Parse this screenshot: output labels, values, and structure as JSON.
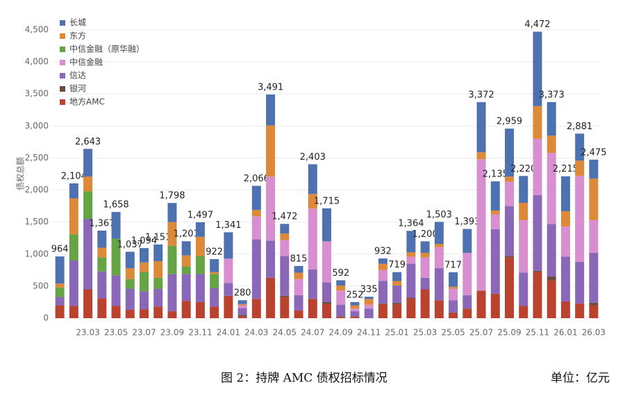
{
  "chart_data": {
    "type": "stacked-bar",
    "y_label": "债权总额",
    "caption": "图 2：持牌 AMC 债权招标情况",
    "unit": "单位：亿元",
    "categories": [
      null,
      null,
      "23.03",
      null,
      "23.05",
      null,
      "23.07",
      null,
      "23.09",
      null,
      "23.11",
      null,
      "24.01",
      null,
      "24.03",
      null,
      "24.05",
      null,
      "24.07",
      null,
      "24.09",
      null,
      "24.11",
      null,
      "25.01",
      null,
      "25.03",
      null,
      "25.05",
      null,
      "25.07",
      null,
      "25.09",
      null,
      "25.11",
      null,
      "26.01",
      null,
      "26.03"
    ],
    "series": [
      {
        "name": "长城",
        "color": "#4e72b0",
        "values": [
          424,
          234,
          433,
          267,
          418,
          257,
          224,
          261,
          298,
          221,
          227,
          202,
          411,
          60,
          376,
          481,
          152,
          105,
          463,
          515,
          82,
          52,
          35,
          82,
          139,
          333,
          180,
          343,
          227,
          373,
          782,
          455,
          749,
          420,
          1162,
          523,
          545,
          421,
          295
        ]
      },
      {
        "name": "东方",
        "color": "#dc8a3a",
        "values": [
          60,
          560,
          230,
          150,
          0,
          170,
          150,
          260,
          370,
          170,
          300,
          30,
          0,
          20,
          100,
          800,
          100,
          100,
          230,
          0,
          80,
          50,
          90,
          100,
          70,
          70,
          70,
          50,
          30,
          0,
          110,
          60,
          80,
          270,
          510,
          270,
          240,
          240,
          650
        ]
      },
      {
        "name": "中信金融（原华融）",
        "color": "#64a445",
        "values": [
          150,
          410,
          430,
          220,
          570,
          150,
          300,
          170,
          440,
          120,
          280,
          220,
          0,
          0,
          0,
          0,
          0,
          0,
          0,
          0,
          0,
          0,
          0,
          0,
          0,
          0,
          0,
          0,
          0,
          0,
          0,
          0,
          0,
          0,
          0,
          0,
          0,
          0,
          0
        ]
      },
      {
        "name": "中信金融",
        "color": "#d88fd0",
        "values": [
          0,
          0,
          0,
          0,
          0,
          0,
          0,
          0,
          0,
          0,
          0,
          0,
          380,
          40,
          360,
          1000,
          250,
          250,
          950,
          640,
          220,
          40,
          60,
          170,
          0,
          110,
          320,
          330,
          180,
          660,
          2050,
          230,
          380,
          820,
          880,
          1110,
          470,
          1340,
          510
        ]
      },
      {
        "name": "信达",
        "color": "#8b67b8",
        "values": [
          130,
          710,
          1100,
          420,
          480,
          330,
          280,
          280,
          580,
          420,
          440,
          290,
          200,
          110,
          930,
          580,
          620,
          240,
          460,
          310,
          180,
          80,
          150,
          350,
          270,
          530,
          180,
          500,
          190,
          210,
          0,
          1010,
          780,
          520,
          1180,
          820,
          700,
          650,
          780
        ]
      },
      {
        "name": "银河",
        "color": "#6d4c3d",
        "values": [
          0,
          0,
          0,
          0,
          0,
          0,
          0,
          0,
          0,
          0,
          0,
          0,
          0,
          20,
          0,
          0,
          20,
          0,
          0,
          30,
          10,
          10,
          0,
          10,
          20,
          10,
          0,
          0,
          10,
          0,
          0,
          0,
          20,
          0,
          20,
          60,
          0,
          0,
          40
        ]
      },
      {
        "name": "地方AMC",
        "color": "#b9432f",
        "values": [
          200,
          190,
          450,
          310,
          190,
          130,
          140,
          180,
          110,
          270,
          250,
          180,
          350,
          30,
          300,
          630,
          330,
          120,
          300,
          220,
          20,
          20,
          0,
          220,
          220,
          310,
          450,
          280,
          80,
          150,
          430,
          380,
          950,
          190,
          720,
          590,
          260,
          230,
          200
        ]
      }
    ],
    "totals": [
      964,
      2104,
      2643,
      1367,
      1658,
      1037,
      1094,
      1151,
      1798,
      1201,
      1497,
      922,
      1341,
      280,
      2066,
      3491,
      1472,
      815,
      2403,
      1715,
      592,
      252,
      335,
      932,
      719,
      1364,
      1200,
      1503,
      717,
      1393,
      3372,
      2135,
      2959,
      2220,
      4472,
      3373,
      2215,
      2881,
      2475
    ],
    "total_labels": [
      "964",
      "2,104",
      "2,643",
      "1,367",
      "1,658",
      "1,037",
      "1,094",
      "1,151",
      "1,798",
      "1,201",
      "1,497",
      "922",
      "1,341",
      "280",
      "2,066",
      "3,491",
      "1,472",
      "815",
      "2,403",
      "1,715",
      "592",
      "252",
      "335",
      "932",
      "719",
      "1,364",
      "1,200",
      "1,503",
      "717",
      "1,393",
      "3,372",
      "2,135",
      "2,959",
      "2,220",
      "4,472",
      "3,373",
      "2,215",
      "2,881",
      "2,475"
    ],
    "ylim": [
      0,
      4500
    ],
    "yticks": [
      0,
      500,
      {
        "value": 1000,
        "label": "1,000"
      },
      {
        "value": 1500,
        "label": "1,500"
      },
      {
        "value": 2000,
        "label": "2,000"
      },
      {
        "value": 2500,
        "label": "2,500"
      },
      {
        "value": 3000,
        "label": "3,000"
      },
      {
        "value": 3500,
        "label": "3,500"
      },
      {
        "value": 4000,
        "label": "4,000"
      },
      {
        "value": 4500,
        "label": "4,500"
      }
    ],
    "grid": true
  }
}
